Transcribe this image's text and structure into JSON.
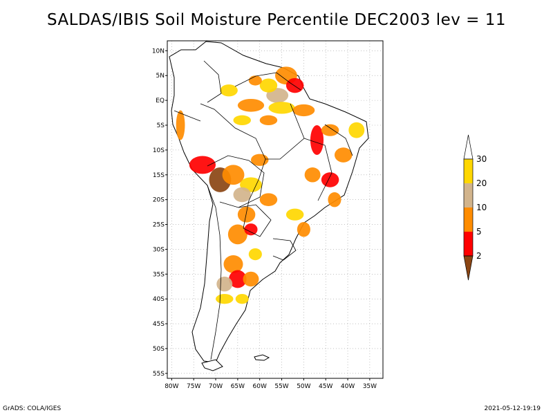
{
  "title": "SALDAS/IBIS Soil Moisture Percentile DEC2003 lev = 11",
  "footer": {
    "left": "GrADS: COLA/IGES",
    "right": "2021-05-12-19:19"
  },
  "map": {
    "region": "South America",
    "lon_range": [
      -81,
      -32
    ],
    "lat_range": [
      -56,
      12
    ],
    "lat_ticks": [
      {
        "value": 10,
        "label": "10N"
      },
      {
        "value": 5,
        "label": "5N"
      },
      {
        "value": 0,
        "label": "EQ"
      },
      {
        "value": -5,
        "label": "5S"
      },
      {
        "value": -10,
        "label": "10S"
      },
      {
        "value": -15,
        "label": "15S"
      },
      {
        "value": -20,
        "label": "20S"
      },
      {
        "value": -25,
        "label": "25S"
      },
      {
        "value": -30,
        "label": "30S"
      },
      {
        "value": -35,
        "label": "35S"
      },
      {
        "value": -40,
        "label": "40S"
      },
      {
        "value": -45,
        "label": "45S"
      },
      {
        "value": -50,
        "label": "50S"
      },
      {
        "value": -55,
        "label": "55S"
      }
    ],
    "lon_ticks": [
      {
        "value": -80,
        "label": "80W"
      },
      {
        "value": -75,
        "label": "75W"
      },
      {
        "value": -70,
        "label": "70W"
      },
      {
        "value": -65,
        "label": "65W"
      },
      {
        "value": -60,
        "label": "60W"
      },
      {
        "value": -55,
        "label": "55W"
      },
      {
        "value": -50,
        "label": "50W"
      },
      {
        "value": -45,
        "label": "45W"
      },
      {
        "value": -40,
        "label": "40W"
      },
      {
        "value": -35,
        "label": "35W"
      }
    ],
    "grid": "dotted"
  },
  "legend": {
    "placement": "right",
    "levels": [
      {
        "label": "2",
        "color": "#8b4513"
      },
      {
        "label": "5",
        "color": "#ff0000"
      },
      {
        "label": "10",
        "color": "#ff8c00"
      },
      {
        "label": "20",
        "color": "#d2b48c"
      },
      {
        "label": "30",
        "color": "#ffd700"
      }
    ],
    "bins": [
      {
        "range": "<2",
        "color": "#8b4513"
      },
      {
        "range": "2-5",
        "color": "#ff0000"
      },
      {
        "range": "5-10",
        "color": "#ff8c00"
      },
      {
        "range": "10-20",
        "color": "#d2b48c"
      },
      {
        "range": "20-30",
        "color": "#ffd700"
      },
      {
        "range": ">30",
        "color": "#ffffff"
      }
    ]
  },
  "anomaly_patches": [
    {
      "lon": -54,
      "lat": 5,
      "rx": 2.5,
      "ry": 1.8,
      "color": "#ff8c00"
    },
    {
      "lon": -52,
      "lat": 3,
      "rx": 2.0,
      "ry": 1.5,
      "color": "#ff0000"
    },
    {
      "lon": -56,
      "lat": 1,
      "rx": 2.5,
      "ry": 1.5,
      "color": "#d2b48c"
    },
    {
      "lon": -58,
      "lat": 3,
      "rx": 2.0,
      "ry": 1.4,
      "color": "#ffd700"
    },
    {
      "lon": -61,
      "lat": 4,
      "rx": 1.5,
      "ry": 1.0,
      "color": "#ff8c00"
    },
    {
      "lon": -67,
      "lat": 2,
      "rx": 2.0,
      "ry": 1.2,
      "color": "#ffd700"
    },
    {
      "lon": -62,
      "lat": -1,
      "rx": 3.0,
      "ry": 1.3,
      "color": "#ff8c00"
    },
    {
      "lon": -55,
      "lat": -1.5,
      "rx": 3.0,
      "ry": 1.2,
      "color": "#ffd700"
    },
    {
      "lon": -50,
      "lat": -2,
      "rx": 2.5,
      "ry": 1.2,
      "color": "#ff8c00"
    },
    {
      "lon": -64,
      "lat": -4,
      "rx": 2.0,
      "ry": 1.0,
      "color": "#ffd700"
    },
    {
      "lon": -58,
      "lat": -4,
      "rx": 2.0,
      "ry": 1.0,
      "color": "#ff8c00"
    },
    {
      "lon": -47,
      "lat": -8,
      "rx": 1.5,
      "ry": 3.0,
      "color": "#ff0000"
    },
    {
      "lon": -44,
      "lat": -6,
      "rx": 2.0,
      "ry": 1.2,
      "color": "#ff8c00"
    },
    {
      "lon": -38,
      "lat": -6,
      "rx": 1.8,
      "ry": 1.6,
      "color": "#ffd700"
    },
    {
      "lon": -41,
      "lat": -11,
      "rx": 2.0,
      "ry": 1.5,
      "color": "#ff8c00"
    },
    {
      "lon": -78,
      "lat": -5,
      "rx": 1.0,
      "ry": 3.0,
      "color": "#ff8c00"
    },
    {
      "lon": -73,
      "lat": -13,
      "rx": 3.0,
      "ry": 1.8,
      "color": "#ff0000"
    },
    {
      "lon": -69,
      "lat": -16,
      "rx": 2.5,
      "ry": 2.5,
      "color": "#8b4513"
    },
    {
      "lon": -66,
      "lat": -15,
      "rx": 2.5,
      "ry": 2.0,
      "color": "#ff8c00"
    },
    {
      "lon": -62,
      "lat": -17,
      "rx": 2.5,
      "ry": 1.5,
      "color": "#ffd700"
    },
    {
      "lon": -60,
      "lat": -12,
      "rx": 2.0,
      "ry": 1.2,
      "color": "#ff8c00"
    },
    {
      "lon": -64,
      "lat": -19,
      "rx": 2.0,
      "ry": 1.5,
      "color": "#d2b48c"
    },
    {
      "lon": -58,
      "lat": -20,
      "rx": 2.0,
      "ry": 1.3,
      "color": "#ff8c00"
    },
    {
      "lon": -48,
      "lat": -15,
      "rx": 1.8,
      "ry": 1.5,
      "color": "#ff8c00"
    },
    {
      "lon": -44,
      "lat": -16,
      "rx": 2.0,
      "ry": 1.5,
      "color": "#ff0000"
    },
    {
      "lon": -43,
      "lat": -20,
      "rx": 1.5,
      "ry": 1.5,
      "color": "#ff8c00"
    },
    {
      "lon": -63,
      "lat": -23,
      "rx": 2.0,
      "ry": 1.6,
      "color": "#ff8c00"
    },
    {
      "lon": -65,
      "lat": -27,
      "rx": 2.2,
      "ry": 2.0,
      "color": "#ff8c00"
    },
    {
      "lon": -62,
      "lat": -26,
      "rx": 1.5,
      "ry": 1.2,
      "color": "#ff0000"
    },
    {
      "lon": -52,
      "lat": -23,
      "rx": 2.0,
      "ry": 1.2,
      "color": "#ffd700"
    },
    {
      "lon": -50,
      "lat": -26,
      "rx": 1.5,
      "ry": 1.5,
      "color": "#ff8c00"
    },
    {
      "lon": -61,
      "lat": -31,
      "rx": 1.5,
      "ry": 1.2,
      "color": "#ffd700"
    },
    {
      "lon": -66,
      "lat": -33,
      "rx": 2.2,
      "ry": 1.8,
      "color": "#ff8c00"
    },
    {
      "lon": -65,
      "lat": -36,
      "rx": 2.0,
      "ry": 1.8,
      "color": "#ff0000"
    },
    {
      "lon": -68,
      "lat": -37,
      "rx": 1.8,
      "ry": 1.5,
      "color": "#d2b48c"
    },
    {
      "lon": -62,
      "lat": -36,
      "rx": 1.8,
      "ry": 1.5,
      "color": "#ff8c00"
    },
    {
      "lon": -68,
      "lat": -40,
      "rx": 2.0,
      "ry": 1.0,
      "color": "#ffd700"
    },
    {
      "lon": -64,
      "lat": -40,
      "rx": 1.5,
      "ry": 1.0,
      "color": "#ffd700"
    }
  ]
}
